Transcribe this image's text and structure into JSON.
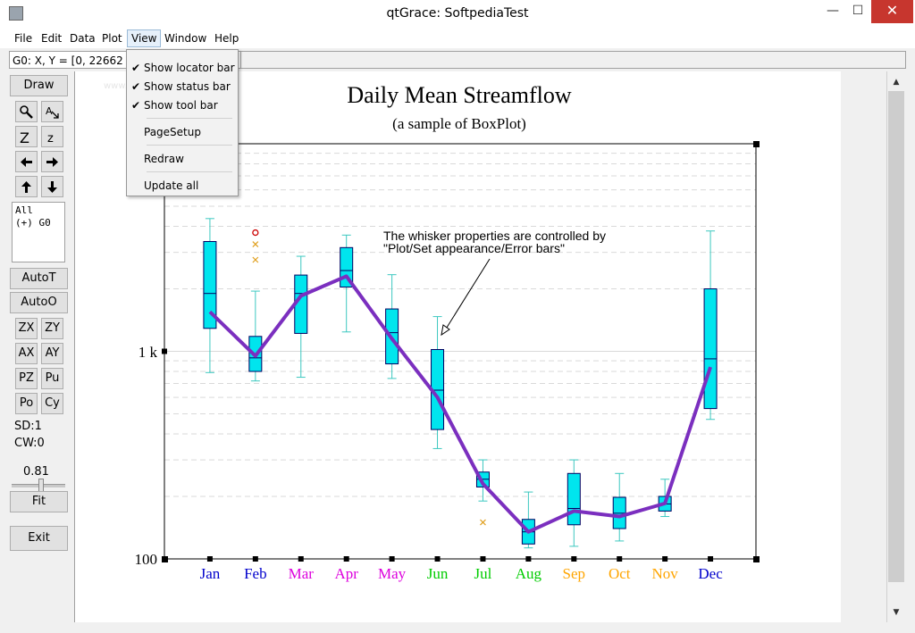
{
  "window": {
    "title": "qtGrace: SoftpediaTest",
    "min_glyph": "—",
    "max_glyph": "☐",
    "close_glyph": "✕",
    "colors": {
      "close_bg": "#c7362e",
      "menu_highlight": "#e6f0fa"
    }
  },
  "menubar": {
    "items": [
      "File",
      "Edit",
      "Data",
      "Plot",
      "View",
      "Window",
      "Help"
    ]
  },
  "view_menu": {
    "items": [
      {
        "label": "Show locator bar",
        "checked": "✔"
      },
      {
        "label": "Show status bar",
        "checked": "✔"
      },
      {
        "label": "Show tool bar",
        "checked": "✔"
      },
      {
        "label": "PageSetup",
        "checked": ""
      },
      {
        "label": "Redraw",
        "checked": ""
      },
      {
        "label": "Update all",
        "checked": ""
      }
    ]
  },
  "locator": {
    "text": "G0: X, Y = [0, 22662"
  },
  "watermark": "www.softpedia.com",
  "toolbar": {
    "draw": "Draw",
    "icons": [
      "zoom-icon",
      "autoscale-text-icon",
      "zoom-in-icon",
      "zoom-out-icon",
      "left-arrow-icon",
      "right-arrow-icon",
      "up-arrow-icon",
      "down-arrow-icon"
    ],
    "icon_glyphs": [
      "⚲",
      "A",
      "Z",
      "z",
      "←",
      "→",
      "↑",
      "↓"
    ],
    "set_list": [
      "All",
      "(+) G0"
    ],
    "autot": "AutoT",
    "autoo": "AutoO",
    "pairs": [
      [
        "ZX",
        "ZY"
      ],
      [
        "AX",
        "AY"
      ],
      [
        "PZ",
        "Pu"
      ],
      [
        "Po",
        "Cy"
      ]
    ],
    "sd": "SD:1",
    "cw": "CW:0",
    "zoom": "0.81",
    "fit": "Fit",
    "exit": "Exit"
  },
  "scrollbar": {
    "up": "▲",
    "down": "▼"
  },
  "chart_data": {
    "type": "box",
    "title": "Daily Mean Streamflow",
    "subtitle": "(a sample of BoxPlot)",
    "yscale": "log",
    "ylim": [
      100,
      10000
    ],
    "ytick_labels": [
      "1 k",
      "100"
    ],
    "categories": [
      "Jan",
      "Feb",
      "Mar",
      "Apr",
      "May",
      "Jun",
      "Jul",
      "Aug",
      "Sep",
      "Oct",
      "Nov",
      "Dec"
    ],
    "category_colors": [
      "#0000cc",
      "#0000cc",
      "#dd00dd",
      "#dd00dd",
      "#dd00dd",
      "#00cc00",
      "#00cc00",
      "#00cc00",
      "#ffa500",
      "#ffa500",
      "#ffa500",
      "#0000cc"
    ],
    "boxes": [
      {
        "min": 790,
        "q1": 1290,
        "median": 1900,
        "q3": 3380,
        "max": 4360
      },
      {
        "min": 720,
        "q1": 800,
        "median": 930,
        "q3": 1180,
        "max": 1950
      },
      {
        "min": 750,
        "q1": 1220,
        "median": 1900,
        "q3": 2330,
        "max": 2870
      },
      {
        "min": 1240,
        "q1": 2040,
        "median": 2450,
        "q3": 3160,
        "max": 3630
      },
      {
        "min": 740,
        "q1": 870,
        "median": 1230,
        "q3": 1600,
        "max": 2340
      },
      {
        "min": 340,
        "q1": 420,
        "median": 650,
        "q3": 1020,
        "max": 1470
      },
      {
        "min": 190,
        "q1": 222,
        "median": 242,
        "q3": 262,
        "max": 300
      },
      {
        "min": 113,
        "q1": 118,
        "median": 135,
        "q3": 155,
        "max": 210
      },
      {
        "min": 115,
        "q1": 146,
        "median": 175,
        "q3": 258,
        "max": 300
      },
      {
        "min": 122,
        "q1": 140,
        "median": 166,
        "q3": 198,
        "max": 258
      },
      {
        "min": 160,
        "q1": 170,
        "median": 184,
        "q3": 200,
        "max": 242
      },
      {
        "min": 470,
        "q1": 530,
        "median": 920,
        "q3": 2000,
        "max": 3800
      }
    ],
    "mean_line": [
      1550,
      950,
      1850,
      2300,
      1150,
      600,
      230,
      135,
      170,
      160,
      185,
      840
    ],
    "outliers": [
      {
        "category": "Feb",
        "value": 3730,
        "marker": "o"
      },
      {
        "category": "Feb",
        "value": 3280,
        "marker": "x"
      },
      {
        "category": "Feb",
        "value": 2760,
        "marker": "x"
      },
      {
        "category": "Jul",
        "value": 150,
        "marker": "x"
      }
    ],
    "annotation": {
      "lines": [
        "The whisker properties are controlled by",
        "\"Plot/Set appearance/Error bars\""
      ]
    },
    "colors": {
      "box_fill": "#00e5ee",
      "whisker": "#3cc8c0",
      "mean_line": "#7b2fbf",
      "outlier_circle": "#cc0000",
      "outlier_x": "#e0a020",
      "grid": "#d9d9d9"
    },
    "grid": true
  }
}
